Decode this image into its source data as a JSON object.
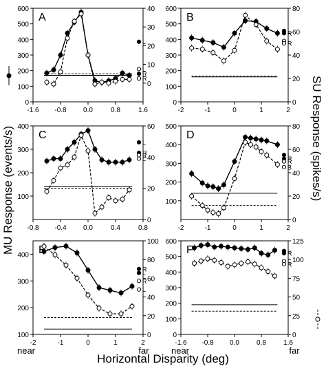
{
  "figure": {
    "ylabel_left": "MU Response (events/s)",
    "ylabel_right": "SU Response (spikes/s)",
    "xlabel": "Horizontal Disparity (deg)",
    "x_near": "near",
    "x_far": "far"
  },
  "chart_data": [
    {
      "panel": "A",
      "type": "line",
      "xticks": [
        "-1.6",
        "-0.8",
        "0.0",
        "0.8",
        "1.6"
      ],
      "xlim": [
        -1.6,
        1.6
      ],
      "ylim_left": [
        0,
        600
      ],
      "yticks_left": [
        0,
        100,
        200,
        300,
        400,
        500,
        600
      ],
      "ylim_right": [
        -10,
        40
      ],
      "yticks_right": [
        0,
        10,
        20,
        30,
        40
      ],
      "series": [
        {
          "name": "MU",
          "axis": "left",
          "style": "solid-filled",
          "x": [
            -1.2,
            -1.0,
            -0.8,
            -0.6,
            -0.4,
            -0.2,
            0.0,
            0.2,
            0.4,
            0.6,
            0.8,
            1.0,
            1.2
          ],
          "y": [
            185,
            205,
            300,
            440,
            510,
            575,
            300,
            135,
            125,
            135,
            150,
            185,
            170
          ]
        },
        {
          "name": "SU",
          "axis": "right",
          "style": "dashed-open",
          "x": [
            -1.2,
            -1.0,
            -0.8,
            -0.6,
            -0.4,
            -0.2,
            0.0,
            0.2,
            0.4,
            0.6,
            0.8,
            1.0,
            1.2
          ],
          "y": [
            0.5,
            -0.5,
            6,
            24,
            33,
            37,
            15,
            -0.5,
            0.5,
            0,
            1,
            2,
            2
          ]
        }
      ],
      "baselines": {
        "mu": 170,
        "su": 5
      },
      "markers": [
        {
          "label": "L",
          "value": 385,
          "style": "filled"
        },
        {
          "label": "L",
          "value": 210,
          "style": "open"
        },
        {
          "label": "R",
          "value": 180,
          "style": "filled"
        },
        {
          "label": "R",
          "value": 150,
          "style": "open"
        }
      ]
    },
    {
      "panel": "B",
      "type": "line",
      "xticks": [
        "-2",
        "-1",
        "0",
        "1",
        "2"
      ],
      "xlim": [
        -2,
        2
      ],
      "ylim_left": [
        0,
        600
      ],
      "yticks_left": [
        0,
        100,
        200,
        300,
        400,
        500,
        600
      ],
      "ylim_right": [
        0,
        80
      ],
      "yticks_right": [
        0,
        20,
        40,
        60,
        80
      ],
      "series": [
        {
          "name": "MU",
          "axis": "left",
          "style": "solid-filled",
          "x": [
            -1.6,
            -1.2,
            -0.8,
            -0.4,
            0.0,
            0.4,
            0.8,
            1.2,
            1.6
          ],
          "y": [
            410,
            395,
            380,
            350,
            440,
            520,
            515,
            470,
            440
          ]
        },
        {
          "name": "SU",
          "axis": "right",
          "style": "dashed-open",
          "x": [
            -1.6,
            -1.2,
            -0.8,
            -0.4,
            0.0,
            0.4,
            0.8,
            1.2,
            1.6
          ],
          "y": [
            46,
            45,
            42,
            35,
            44,
            74,
            66,
            52,
            45
          ]
        }
      ],
      "baselines": {
        "mu": 160,
        "su": 22
      },
      "markers": [
        {
          "label": "L",
          "value": 455,
          "style": "filled"
        },
        {
          "label": "R",
          "value": 440,
          "style": "filled"
        },
        {
          "label": "L",
          "value": 390,
          "style": "open"
        },
        {
          "label": "R",
          "value": 375,
          "style": "open"
        }
      ]
    },
    {
      "panel": "C",
      "type": "line",
      "xticks": [
        "-0.8",
        "-0.4",
        "0.0",
        "0.4",
        "0.8"
      ],
      "xlim": [
        -0.8,
        0.8
      ],
      "ylim_left": [
        0,
        400
      ],
      "yticks_left": [
        100,
        200,
        300,
        400
      ],
      "ylim_right": [
        0,
        60
      ],
      "yticks_right": [
        0,
        20,
        40,
        60
      ],
      "series": [
        {
          "name": "MU",
          "axis": "left",
          "style": "solid-filled",
          "x": [
            -0.6,
            -0.5,
            -0.4,
            -0.3,
            -0.2,
            -0.1,
            0.0,
            0.1,
            0.2,
            0.3,
            0.4,
            0.5,
            0.6
          ],
          "y": [
            250,
            260,
            260,
            300,
            330,
            365,
            380,
            300,
            255,
            245,
            245,
            245,
            255
          ]
        },
        {
          "name": "SU",
          "axis": "right",
          "style": "dashed-open",
          "x": [
            -0.6,
            -0.5,
            -0.4,
            -0.3,
            -0.2,
            -0.1,
            0.0,
            0.1,
            0.2,
            0.3,
            0.4,
            0.5,
            0.6
          ],
          "y": [
            18,
            25,
            33,
            35,
            40,
            54,
            44,
            4,
            8,
            14,
            12,
            13,
            19
          ]
        }
      ],
      "baselines": {
        "mu": 140,
        "su": 20
      },
      "markers": [
        {
          "label": "L",
          "value": 330,
          "style": "filled"
        },
        {
          "label": "R",
          "value": 285,
          "style": "filled"
        },
        {
          "label": "R",
          "value": 275,
          "style": "open"
        },
        {
          "label": "L",
          "value": 260,
          "style": "open"
        }
      ]
    },
    {
      "panel": "D",
      "type": "line",
      "xticks": [
        "-2",
        "-1",
        "0",
        "1",
        "2"
      ],
      "xlim": [
        -2,
        2
      ],
      "ylim_left": [
        0,
        500
      ],
      "yticks_left": [
        100,
        200,
        300,
        400,
        500
      ],
      "ylim_right": [
        0,
        80
      ],
      "yticks_right": [
        0,
        20,
        40,
        60,
        80
      ],
      "series": [
        {
          "name": "MU",
          "axis": "left",
          "style": "solid-filled",
          "x": [
            -1.6,
            -1.2,
            -1.0,
            -0.8,
            -0.6,
            -0.4,
            0.0,
            0.4,
            0.6,
            0.8,
            1.0,
            1.2,
            1.6
          ],
          "y": [
            245,
            195,
            180,
            175,
            165,
            185,
            310,
            440,
            435,
            430,
            425,
            420,
            400
          ]
        },
        {
          "name": "SU",
          "axis": "right",
          "style": "dashed-open",
          "x": [
            -1.6,
            -1.2,
            -1.0,
            -0.8,
            -0.6,
            -0.4,
            0.0,
            0.4,
            0.6,
            0.8,
            1.0,
            1.2,
            1.6
          ],
          "y": [
            20,
            12,
            8,
            6,
            5,
            10,
            35,
            66,
            64,
            62,
            58,
            55,
            47
          ]
        }
      ],
      "baselines": {
        "mu": 140,
        "su": 12
      },
      "markers": [
        {
          "label": "L",
          "value": 345,
          "style": "filled"
        },
        {
          "label": "R",
          "value": 325,
          "style": "filled"
        },
        {
          "label": "R",
          "value": 310,
          "style": "open"
        },
        {
          "label": "B",
          "value": 280,
          "style": "open"
        }
      ]
    },
    {
      "panel": "E",
      "type": "line",
      "xticks": [
        "-2",
        "-1",
        "0",
        "1",
        "2"
      ],
      "xlim": [
        -2,
        2
      ],
      "ylim_left": [
        100,
        450
      ],
      "yticks_left": [
        100,
        200,
        300,
        400
      ],
      "ylim_right": [
        0,
        100
      ],
      "yticks_right": [
        0,
        20,
        40,
        60,
        80,
        100
      ],
      "series": [
        {
          "name": "MU",
          "axis": "left",
          "style": "solid-filled",
          "x": [
            -1.6,
            -1.2,
            -0.8,
            -0.4,
            0.0,
            0.4,
            0.8,
            1.2,
            1.6
          ],
          "y": [
            410,
            425,
            430,
            405,
            340,
            275,
            265,
            255,
            280
          ]
        },
        {
          "name": "SU",
          "axis": "right",
          "style": "dashed-open",
          "x": [
            -1.6,
            -1.2,
            -0.8,
            -0.4,
            0.0,
            0.4,
            0.8,
            1.2,
            1.6
          ],
          "y": [
            94,
            85,
            74,
            60,
            42,
            28,
            22,
            22,
            30
          ]
        }
      ],
      "baselines": {
        "mu": 120,
        "su": 18
      },
      "markers": [
        {
          "label": "R",
          "value": 345,
          "style": "filled"
        },
        {
          "label": "L",
          "value": 330,
          "style": "filled"
        },
        {
          "label": "R",
          "value": 300,
          "style": "open"
        },
        {
          "label": "L",
          "value": 268,
          "style": "open"
        }
      ]
    },
    {
      "panel": "F",
      "type": "line",
      "xticks": [
        "-1.6",
        "-0.8",
        "0.0",
        "0.8",
        "1.6"
      ],
      "xlim": [
        -1.6,
        1.6
      ],
      "ylim_left": [
        0,
        600
      ],
      "yticks_left": [
        0,
        100,
        200,
        300,
        400,
        500,
        600
      ],
      "ylim_right": [
        0,
        125
      ],
      "yticks_right": [
        0,
        25,
        50,
        75,
        100,
        125
      ],
      "series": [
        {
          "name": "MU",
          "axis": "left",
          "style": "solid-filled",
          "x": [
            -1.2,
            -1.0,
            -0.8,
            -0.6,
            -0.4,
            -0.2,
            0.0,
            0.2,
            0.4,
            0.6,
            0.8,
            1.0,
            1.2
          ],
          "y": [
            555,
            570,
            575,
            560,
            565,
            560,
            555,
            550,
            545,
            555,
            520,
            510,
            540
          ]
        },
        {
          "name": "SU",
          "axis": "right",
          "style": "dashed-open",
          "x": [
            -1.2,
            -1.0,
            -0.8,
            -0.6,
            -0.4,
            -0.2,
            0.0,
            0.2,
            0.4,
            0.6,
            0.8,
            1.0,
            1.2
          ],
          "y": [
            95,
            98,
            101,
            99,
            96,
            91,
            93,
            95,
            97,
            94,
            89,
            84,
            78
          ]
        },
        {
          "name": "",
          "axis": "left",
          "style": "solid-plain",
          "x": [
            -1.2,
            1.2
          ],
          "y": [
            190,
            190
          ]
        }
      ],
      "baselines": {
        "mu": 190,
        "su": 31
      },
      "markers": [
        {
          "label": "L",
          "value": 535,
          "style": "filled"
        },
        {
          "label": "R",
          "value": 520,
          "style": "filled"
        },
        {
          "label": "L",
          "value": 470,
          "style": "open"
        },
        {
          "label": "R",
          "value": 450,
          "style": "open"
        }
      ]
    }
  ]
}
